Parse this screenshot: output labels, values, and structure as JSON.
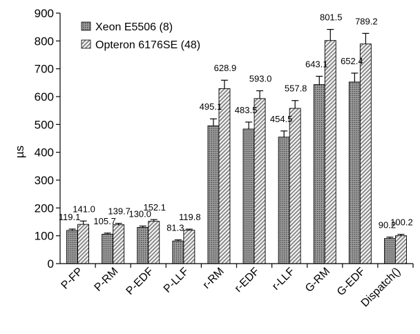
{
  "chart_data": {
    "type": "bar",
    "ylabel": "µs",
    "xlabel": "",
    "title": "",
    "ylim": [
      0,
      900
    ],
    "yticks": [
      0,
      100,
      200,
      300,
      400,
      500,
      600,
      700,
      800,
      900
    ],
    "categories": [
      "P-FP",
      "P-RM",
      "P-EDF",
      "P-LLF",
      "r-RM",
      "r-EDF",
      "r-LLF",
      "G-RM",
      "G-EDF",
      "Dispatch()"
    ],
    "series": [
      {
        "name": "Xeon E5506 (8)",
        "values": [
          119.1,
          105.7,
          130.0,
          81.3,
          495.1,
          483.5,
          454.5,
          643.1,
          652.4,
          90.2
        ],
        "labels": [
          "119.1",
          "105.7",
          "130.0",
          "81.3",
          "495.1",
          "483.5",
          "454.5",
          "643.1",
          "652.4",
          "90.2"
        ],
        "error": [
          5,
          4,
          5,
          4,
          25,
          25,
          22,
          30,
          32,
          5
        ],
        "pattern": "dots-dark"
      },
      {
        "name": "Opteron 6176SE (48)",
        "values": [
          141.0,
          139.7,
          152.1,
          119.8,
          628.9,
          593.0,
          557.8,
          801.5,
          789.2,
          100.2
        ],
        "labels": [
          "141.0",
          "139.7",
          "152.1",
          "119.8",
          "628.9",
          "593.0",
          "557.8",
          "801.5",
          "789.2",
          "100.2"
        ],
        "error": [
          12,
          5,
          6,
          4,
          30,
          28,
          28,
          40,
          38,
          5
        ],
        "pattern": "diagonal-light"
      }
    ],
    "grid": false,
    "legend": "top-left"
  }
}
